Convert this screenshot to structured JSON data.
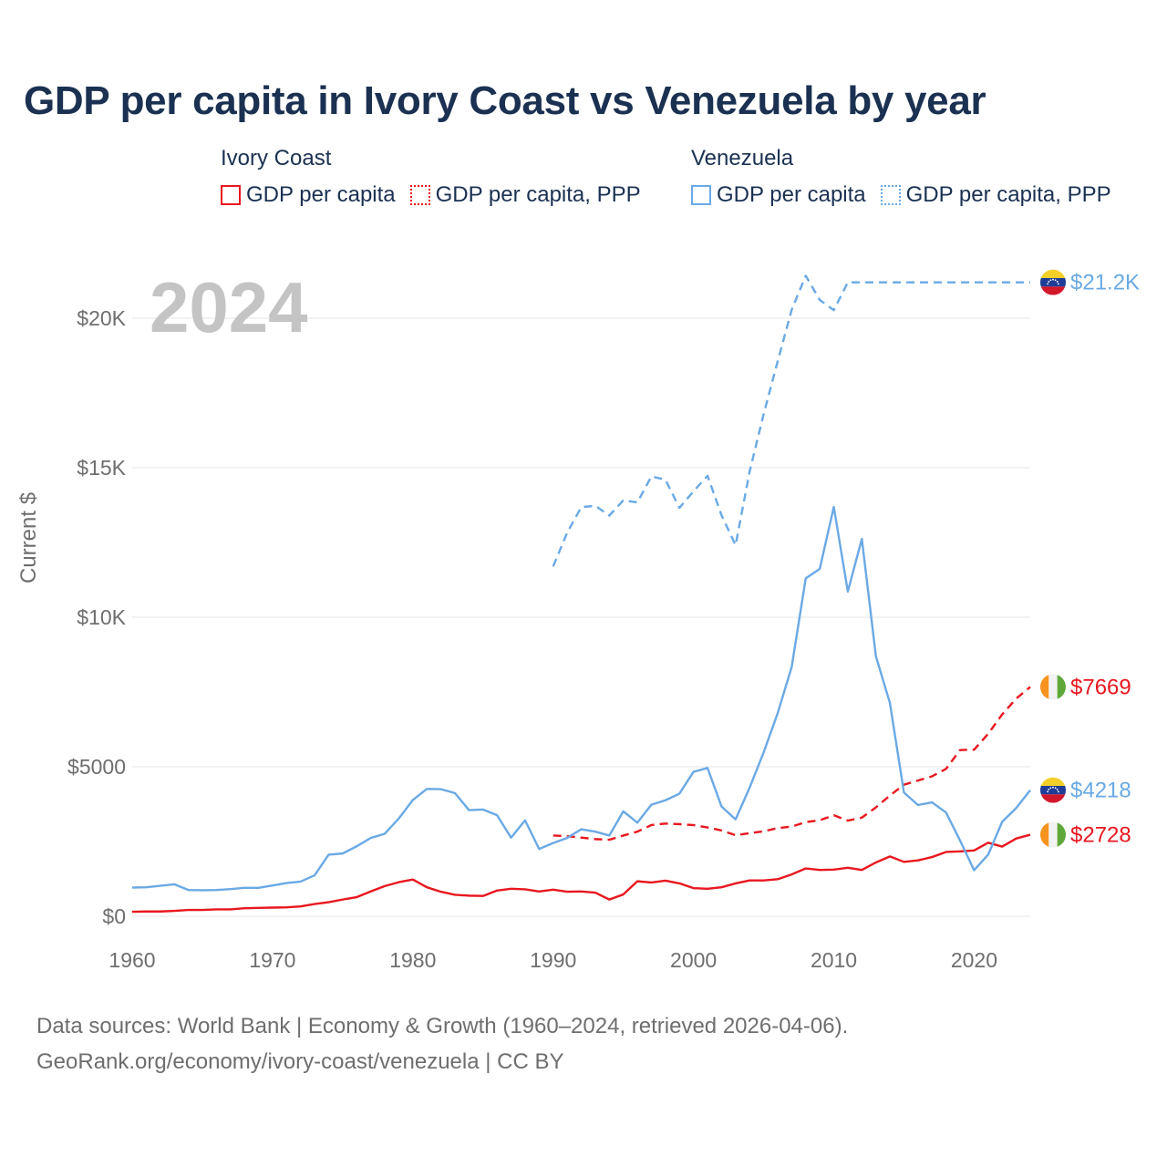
{
  "title": "GDP per capita in Ivory Coast vs Venezuela by year",
  "year_watermark": "2024",
  "legend": {
    "groups": [
      {
        "title": "Ivory Coast",
        "items": [
          {
            "label": "GDP per capita"
          },
          {
            "label": "GDP per capita, PPP"
          }
        ]
      },
      {
        "title": "Venezuela",
        "items": [
          {
            "label": "GDP per capita"
          },
          {
            "label": "GDP per capita, PPP"
          }
        ]
      }
    ]
  },
  "source": {
    "line1": "Data sources: World Bank | Economy & Growth (1960–2024, retrieved 2026-04-06).",
    "line2": "GeoRank.org/economy/ivory-coast/venezuela | CC BY"
  },
  "colors": {
    "ivory_coast": "#e8171f",
    "venezuela": "#6aa9e4",
    "grid": "#e6e6e6",
    "title": "#1b3152"
  },
  "chart_data": {
    "type": "line",
    "title": "GDP per capita in Ivory Coast vs Venezuela by year",
    "xlabel": "",
    "ylabel": "Current $",
    "xlim": [
      1960,
      2024
    ],
    "ylim": [
      0,
      21800
    ],
    "x_ticks": [
      1960,
      1970,
      1980,
      1990,
      2000,
      2010,
      2020
    ],
    "y_ticks": [
      {
        "value": 0,
        "label": "$0"
      },
      {
        "value": 5000,
        "label": "$5000"
      },
      {
        "value": 10000,
        "label": "$10K"
      },
      {
        "value": 15000,
        "label": "$15K"
      },
      {
        "value": 20000,
        "label": "$20K"
      }
    ],
    "grid": true,
    "series": [
      {
        "name": "Ivory Coast GDP per capita",
        "country": "Ivory Coast",
        "style": "solid",
        "color": "#e8171f",
        "x_start": 1960,
        "values": [
          150,
          160,
          160,
          180,
          210,
          210,
          230,
          230,
          270,
          280,
          290,
          300,
          330,
          410,
          470,
          560,
          640,
          830,
          1010,
          1140,
          1230,
          970,
          820,
          720,
          690,
          680,
          860,
          920,
          900,
          830,
          890,
          820,
          830,
          790,
          560,
          730,
          1170,
          1130,
          1190,
          1100,
          940,
          920,
          970,
          1100,
          1200,
          1200,
          1240,
          1400,
          1600,
          1550,
          1560,
          1620,
          1550,
          1800,
          2000,
          1820,
          1870,
          1980,
          2150,
          2170,
          2200,
          2460,
          2330,
          2600,
          2728
        ],
        "end_label": "$2728"
      },
      {
        "name": "Ivory Coast GDP per capita, PPP",
        "country": "Ivory Coast",
        "style": "dashed",
        "color": "#e8171f",
        "x_start": 1990,
        "values": [
          2700,
          2680,
          2630,
          2580,
          2560,
          2700,
          2830,
          3050,
          3100,
          3080,
          3050,
          2970,
          2870,
          2710,
          2780,
          2840,
          2950,
          3000,
          3150,
          3210,
          3380,
          3200,
          3300,
          3640,
          4040,
          4400,
          4540,
          4680,
          4930,
          5560,
          5570,
          6100,
          6750,
          7280,
          7669
        ],
        "end_label": "$7669"
      },
      {
        "name": "Venezuela GDP per capita",
        "country": "Venezuela",
        "style": "solid",
        "color": "#6aa9e4",
        "x_start": 1960,
        "values": [
          960,
          970,
          1020,
          1070,
          880,
          870,
          880,
          910,
          950,
          950,
          1030,
          1110,
          1160,
          1370,
          2060,
          2100,
          2340,
          2620,
          2760,
          3270,
          3890,
          4260,
          4250,
          4120,
          3550,
          3570,
          3380,
          2630,
          3210,
          2250,
          2450,
          2620,
          2910,
          2830,
          2700,
          3510,
          3130,
          3730,
          3880,
          4100,
          4830,
          4960,
          3670,
          3240,
          4300,
          5480,
          6790,
          8340,
          11300,
          11620,
          13690,
          10860,
          12620,
          8700,
          7130,
          4140,
          3720,
          3810,
          3470,
          2530,
          1540,
          2060,
          3160,
          3620,
          4218
        ],
        "end_label": "$4218"
      },
      {
        "name": "Venezuela GDP per capita, PPP",
        "country": "Venezuela",
        "style": "dashed",
        "color": "#6aa9e4",
        "x_start": 1990,
        "values": [
          11700,
          12830,
          13680,
          13730,
          13400,
          13910,
          13840,
          14710,
          14600,
          13660,
          14210,
          14730,
          13410,
          12410,
          14870,
          16790,
          18560,
          20280,
          21420,
          20610,
          20270,
          21200,
          21200,
          21200,
          21200,
          21200,
          21200,
          21200,
          21200,
          21200,
          21200,
          21200,
          21200,
          21200,
          21200
        ],
        "end_label": "$21.2K"
      }
    ]
  }
}
